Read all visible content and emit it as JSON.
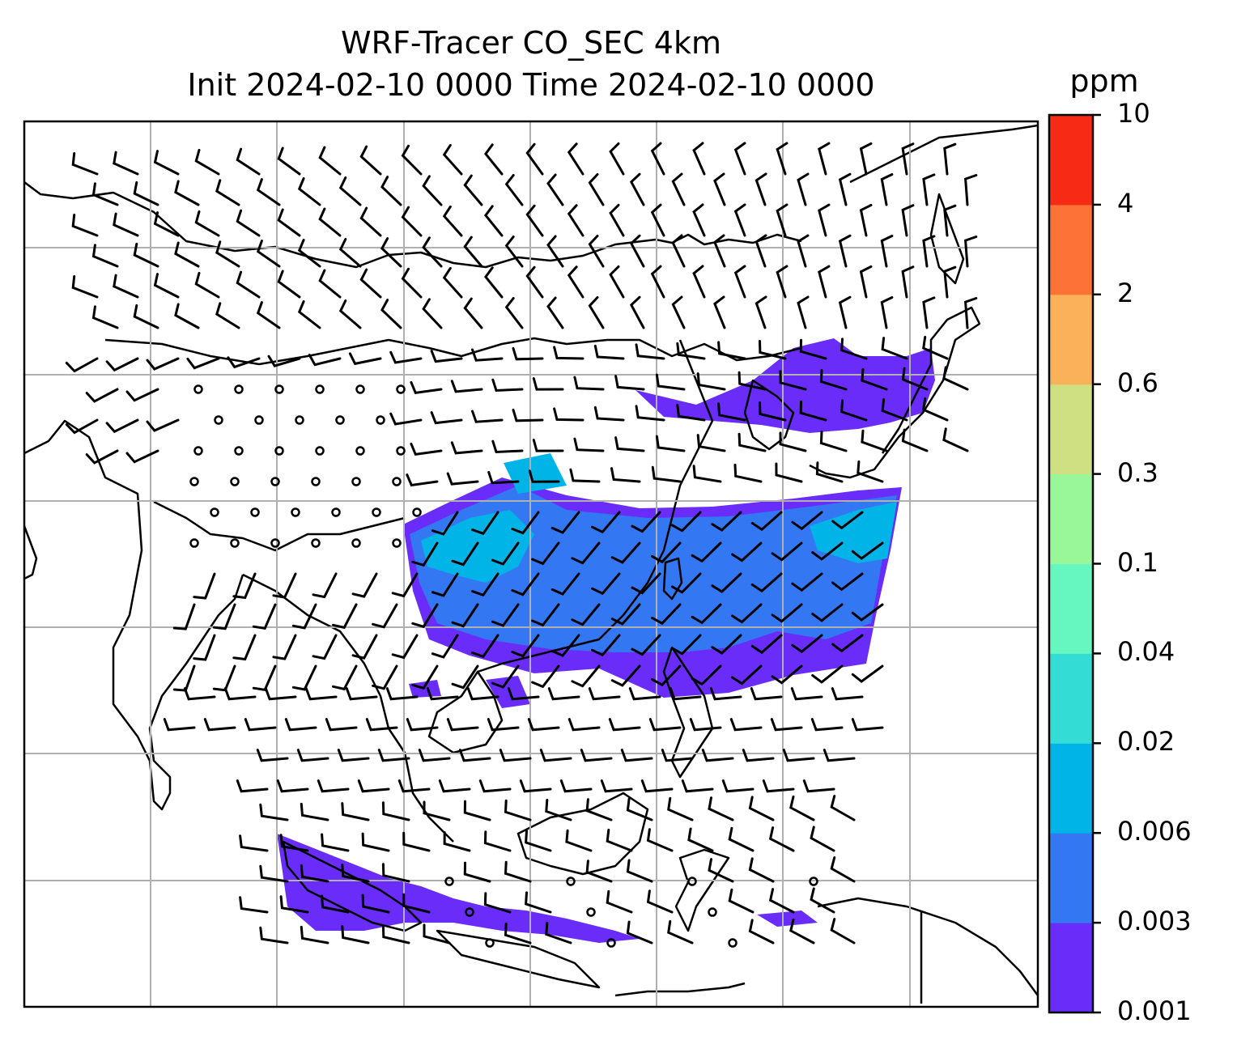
{
  "figure": {
    "title_line1": "WRF-Tracer CO_SEC 4km",
    "title_line2": "Init 2024-02-10 0000 Time 2024-02-10 0000"
  },
  "colorbar": {
    "unit": "ppm",
    "levels": [
      "0.001",
      "0.003",
      "0.006",
      "0.02",
      "0.04",
      "0.1",
      "0.3",
      "0.6",
      "2",
      "4",
      "10"
    ],
    "colors": [
      "#6a2cf8",
      "#3377f2",
      "#00b4e8",
      "#33dcd4",
      "#66f7c0",
      "#99f79a",
      "#cfe083",
      "#fbb05a",
      "#fc7237",
      "#f72a16"
    ]
  },
  "map": {
    "coastline_color": "#000000",
    "gridline_color": "#b0b0b0",
    "grid": true,
    "wind_barbs": true
  }
}
